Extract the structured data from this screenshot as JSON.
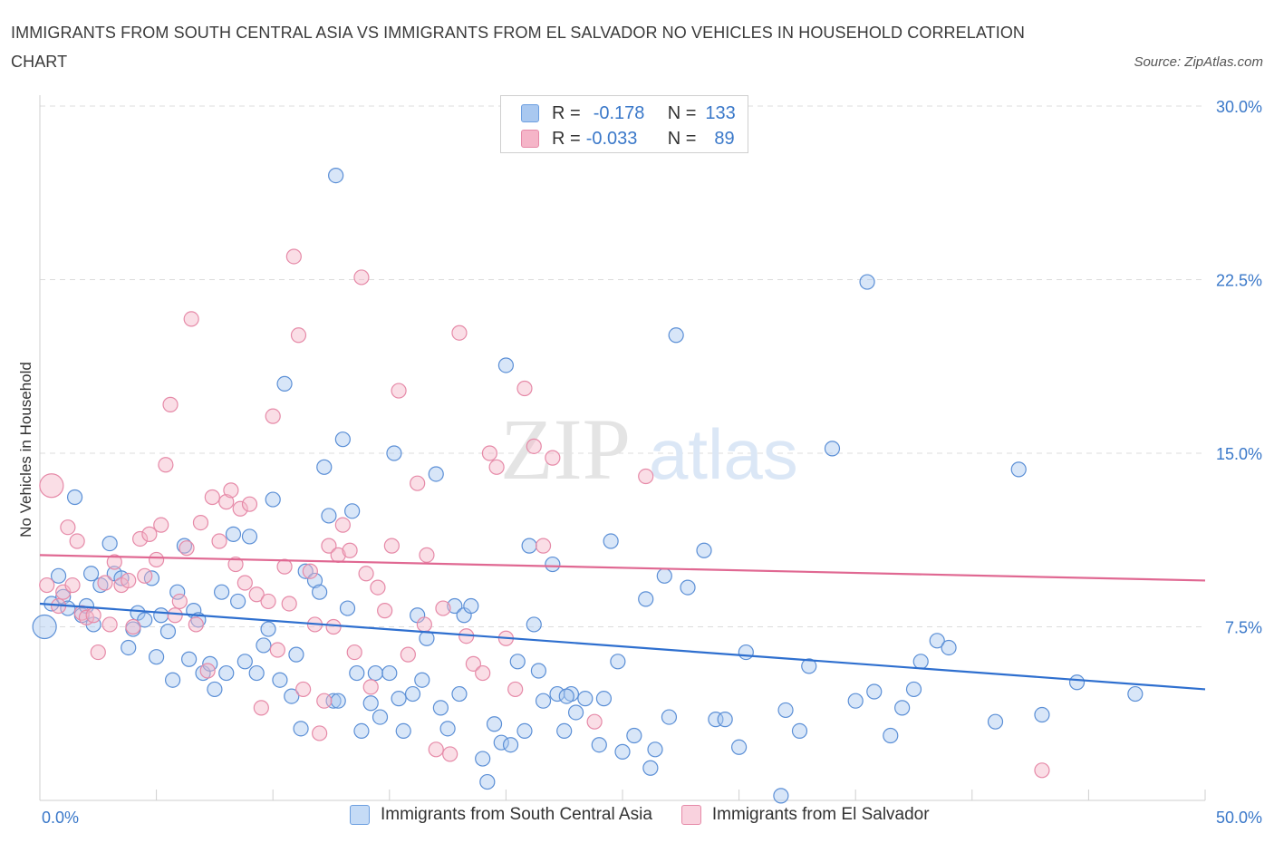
{
  "title": "IMMIGRANTS FROM SOUTH CENTRAL ASIA VS IMMIGRANTS FROM EL SALVADOR NO VEHICLES IN HOUSEHOLD CORRELATION CHART",
  "source": "Source: ZipAtlas.com",
  "watermark": {
    "zip": "ZIP",
    "atlas": "atlas"
  },
  "legend_top": {
    "rows": [
      {
        "r_label": "R =",
        "r_value": "-0.178",
        "n_label": "N =",
        "n_value": "133",
        "color": "#a9c8f0"
      },
      {
        "r_label": "R =",
        "r_value": "-0.033",
        "n_label": "N =",
        "n_value": "89",
        "color": "#f5b5c8"
      }
    ]
  },
  "legend_bottom": [
    {
      "label": "Immigrants from South Central Asia",
      "color": "#a9c8f0"
    },
    {
      "label": "Immigrants from El Salvador",
      "color": "#f5b5c8"
    }
  ],
  "chart_data": {
    "type": "scatter",
    "ylabel": "No Vehicles in Household",
    "xlim": [
      0,
      50
    ],
    "ylim": [
      0,
      30
    ],
    "x_ticks": [
      "0.0%",
      "50.0%"
    ],
    "y_ticks": [
      {
        "value": 7.5,
        "label": "7.5%"
      },
      {
        "value": 15,
        "label": "15.0%"
      },
      {
        "value": 22.5,
        "label": "22.5%"
      },
      {
        "value": 30,
        "label": "30.0%"
      }
    ],
    "grid": "horizontal dashed",
    "series": [
      {
        "name": "Immigrants from South Central Asia",
        "color": "#5b8fd6",
        "fill": "#a9c8f0",
        "trend": {
          "x0": 0,
          "y0": 8.5,
          "x1": 50,
          "y1": 4.8,
          "color": "#2e6fcf"
        },
        "points": [
          [
            0.2,
            7.5
          ],
          [
            0.5,
            8.5
          ],
          [
            0.8,
            9.7
          ],
          [
            1.0,
            8.8
          ],
          [
            1.2,
            8.3
          ],
          [
            1.5,
            13.1
          ],
          [
            1.8,
            8.0
          ],
          [
            2.0,
            8.4
          ],
          [
            2.2,
            9.8
          ],
          [
            2.3,
            7.6
          ],
          [
            2.6,
            9.3
          ],
          [
            3.0,
            11.1
          ],
          [
            3.2,
            9.8
          ],
          [
            3.5,
            9.6
          ],
          [
            3.8,
            6.6
          ],
          [
            4.0,
            7.4
          ],
          [
            4.2,
            8.1
          ],
          [
            4.5,
            7.8
          ],
          [
            4.8,
            9.6
          ],
          [
            5.0,
            6.2
          ],
          [
            5.2,
            8.0
          ],
          [
            5.5,
            7.3
          ],
          [
            5.7,
            5.2
          ],
          [
            5.9,
            9.0
          ],
          [
            6.2,
            11.0
          ],
          [
            6.4,
            6.1
          ],
          [
            6.6,
            8.2
          ],
          [
            6.8,
            7.8
          ],
          [
            7.0,
            5.5
          ],
          [
            7.3,
            5.9
          ],
          [
            7.5,
            4.8
          ],
          [
            7.8,
            9.0
          ],
          [
            8.0,
            5.5
          ],
          [
            8.3,
            11.5
          ],
          [
            8.5,
            8.6
          ],
          [
            8.8,
            6.0
          ],
          [
            9.0,
            11.4
          ],
          [
            9.3,
            5.5
          ],
          [
            9.6,
            6.7
          ],
          [
            9.8,
            7.4
          ],
          [
            10.0,
            13.0
          ],
          [
            10.3,
            5.2
          ],
          [
            10.5,
            18.0
          ],
          [
            10.8,
            4.5
          ],
          [
            11.0,
            6.3
          ],
          [
            11.2,
            3.1
          ],
          [
            11.4,
            9.9
          ],
          [
            11.8,
            9.5
          ],
          [
            12.0,
            9.0
          ],
          [
            12.2,
            14.4
          ],
          [
            12.4,
            12.3
          ],
          [
            12.6,
            4.3
          ],
          [
            12.8,
            4.3
          ],
          [
            13.0,
            15.6
          ],
          [
            13.2,
            8.3
          ],
          [
            13.4,
            12.5
          ],
          [
            13.6,
            5.5
          ],
          [
            13.8,
            3.0
          ],
          [
            14.2,
            4.2
          ],
          [
            14.4,
            5.5
          ],
          [
            14.6,
            3.6
          ],
          [
            15.0,
            5.5
          ],
          [
            15.2,
            15.0
          ],
          [
            15.4,
            4.4
          ],
          [
            15.6,
            3.0
          ],
          [
            16.0,
            4.6
          ],
          [
            16.2,
            8.0
          ],
          [
            16.4,
            5.2
          ],
          [
            16.6,
            7.0
          ],
          [
            17.0,
            14.1
          ],
          [
            17.2,
            4.0
          ],
          [
            17.5,
            3.1
          ],
          [
            17.8,
            8.4
          ],
          [
            18.0,
            4.6
          ],
          [
            18.2,
            8.0
          ],
          [
            18.5,
            8.4
          ],
          [
            19.0,
            1.8
          ],
          [
            19.2,
            0.8
          ],
          [
            19.5,
            3.3
          ],
          [
            19.8,
            2.5
          ],
          [
            20.0,
            18.8
          ],
          [
            20.2,
            2.4
          ],
          [
            20.5,
            6.0
          ],
          [
            20.8,
            3.0
          ],
          [
            21.0,
            11.0
          ],
          [
            21.2,
            7.6
          ],
          [
            21.4,
            5.6
          ],
          [
            21.6,
            4.3
          ],
          [
            22.0,
            10.2
          ],
          [
            22.2,
            4.6
          ],
          [
            22.5,
            3.0
          ],
          [
            22.8,
            4.6
          ],
          [
            23.0,
            3.8
          ],
          [
            23.4,
            4.4
          ],
          [
            24.0,
            2.4
          ],
          [
            24.5,
            11.2
          ],
          [
            24.8,
            6.0
          ],
          [
            25.0,
            2.1
          ],
          [
            25.5,
            2.8
          ],
          [
            26.0,
            8.7
          ],
          [
            26.2,
            1.4
          ],
          [
            26.4,
            2.2
          ],
          [
            26.8,
            9.7
          ],
          [
            27.0,
            3.6
          ],
          [
            27.3,
            20.1
          ],
          [
            27.8,
            9.2
          ],
          [
            28.5,
            10.8
          ],
          [
            29.0,
            3.5
          ],
          [
            29.4,
            3.5
          ],
          [
            30.0,
            2.3
          ],
          [
            30.3,
            6.4
          ],
          [
            31.8,
            0.2
          ],
          [
            32.0,
            3.9
          ],
          [
            32.6,
            3.0
          ],
          [
            33.0,
            5.8
          ],
          [
            34.0,
            15.2
          ],
          [
            35.0,
            4.3
          ],
          [
            35.5,
            22.4
          ],
          [
            35.8,
            4.7
          ],
          [
            36.5,
            2.8
          ],
          [
            37.0,
            4.0
          ],
          [
            37.5,
            4.8
          ],
          [
            37.8,
            6.0
          ],
          [
            38.5,
            6.9
          ],
          [
            39.0,
            6.6
          ],
          [
            42.0,
            14.3
          ],
          [
            41.0,
            3.4
          ],
          [
            43.0,
            3.7
          ],
          [
            44.5,
            5.1
          ],
          [
            47.0,
            4.6
          ],
          [
            22.6,
            4.5
          ],
          [
            24.2,
            4.4
          ],
          [
            12.7,
            27.0
          ]
        ]
      },
      {
        "name": "Immigrants from El Salvador",
        "color": "#e68aa8",
        "fill": "#f5b5c8",
        "trend": {
          "x0": 0,
          "y0": 10.6,
          "x1": 50,
          "y1": 9.5,
          "color": "#e06892"
        },
        "points": [
          [
            0.3,
            9.3
          ],
          [
            0.5,
            13.6
          ],
          [
            0.8,
            8.4
          ],
          [
            1.0,
            9.0
          ],
          [
            1.2,
            11.8
          ],
          [
            1.4,
            9.3
          ],
          [
            1.6,
            11.2
          ],
          [
            1.8,
            8.1
          ],
          [
            2.0,
            7.9
          ],
          [
            2.3,
            8.0
          ],
          [
            2.5,
            6.4
          ],
          [
            2.8,
            9.4
          ],
          [
            3.0,
            7.6
          ],
          [
            3.2,
            10.3
          ],
          [
            3.5,
            9.3
          ],
          [
            3.8,
            9.5
          ],
          [
            4.0,
            7.5
          ],
          [
            4.3,
            11.3
          ],
          [
            4.5,
            9.7
          ],
          [
            4.7,
            11.5
          ],
          [
            5.0,
            10.4
          ],
          [
            5.2,
            11.9
          ],
          [
            5.4,
            14.5
          ],
          [
            5.6,
            17.1
          ],
          [
            5.8,
            8.0
          ],
          [
            6.0,
            8.6
          ],
          [
            6.3,
            10.9
          ],
          [
            6.5,
            20.8
          ],
          [
            6.7,
            7.6
          ],
          [
            6.9,
            12.0
          ],
          [
            7.2,
            5.6
          ],
          [
            7.4,
            13.1
          ],
          [
            7.7,
            11.2
          ],
          [
            8.0,
            12.9
          ],
          [
            8.2,
            13.4
          ],
          [
            8.4,
            10.2
          ],
          [
            8.6,
            12.6
          ],
          [
            8.8,
            9.4
          ],
          [
            9.0,
            12.8
          ],
          [
            9.3,
            8.9
          ],
          [
            9.5,
            4.0
          ],
          [
            9.8,
            8.6
          ],
          [
            10.0,
            16.6
          ],
          [
            10.2,
            6.5
          ],
          [
            10.5,
            10.1
          ],
          [
            10.7,
            8.5
          ],
          [
            10.9,
            23.5
          ],
          [
            11.1,
            20.1
          ],
          [
            11.3,
            4.8
          ],
          [
            11.6,
            9.9
          ],
          [
            11.8,
            7.6
          ],
          [
            12.0,
            2.9
          ],
          [
            12.2,
            4.3
          ],
          [
            12.4,
            11.0
          ],
          [
            12.6,
            7.5
          ],
          [
            12.8,
            10.6
          ],
          [
            13.0,
            11.9
          ],
          [
            13.3,
            10.8
          ],
          [
            13.5,
            6.4
          ],
          [
            13.8,
            22.6
          ],
          [
            14.0,
            9.8
          ],
          [
            14.2,
            4.9
          ],
          [
            14.5,
            9.2
          ],
          [
            14.8,
            8.2
          ],
          [
            15.1,
            11.0
          ],
          [
            15.4,
            17.7
          ],
          [
            15.8,
            6.3
          ],
          [
            16.2,
            13.7
          ],
          [
            16.5,
            7.6
          ],
          [
            16.6,
            10.6
          ],
          [
            17.0,
            2.2
          ],
          [
            17.3,
            8.3
          ],
          [
            17.6,
            2.0
          ],
          [
            18.0,
            20.2
          ],
          [
            18.3,
            7.1
          ],
          [
            18.6,
            5.9
          ],
          [
            19.0,
            5.5
          ],
          [
            19.3,
            15.0
          ],
          [
            19.6,
            14.4
          ],
          [
            20.0,
            7.0
          ],
          [
            20.4,
            4.8
          ],
          [
            20.8,
            17.8
          ],
          [
            21.2,
            15.3
          ],
          [
            21.6,
            11.0
          ],
          [
            22.0,
            14.8
          ],
          [
            22.5,
            28.3
          ],
          [
            23.8,
            3.4
          ],
          [
            26.0,
            14.0
          ],
          [
            43.0,
            1.3
          ]
        ]
      }
    ]
  }
}
